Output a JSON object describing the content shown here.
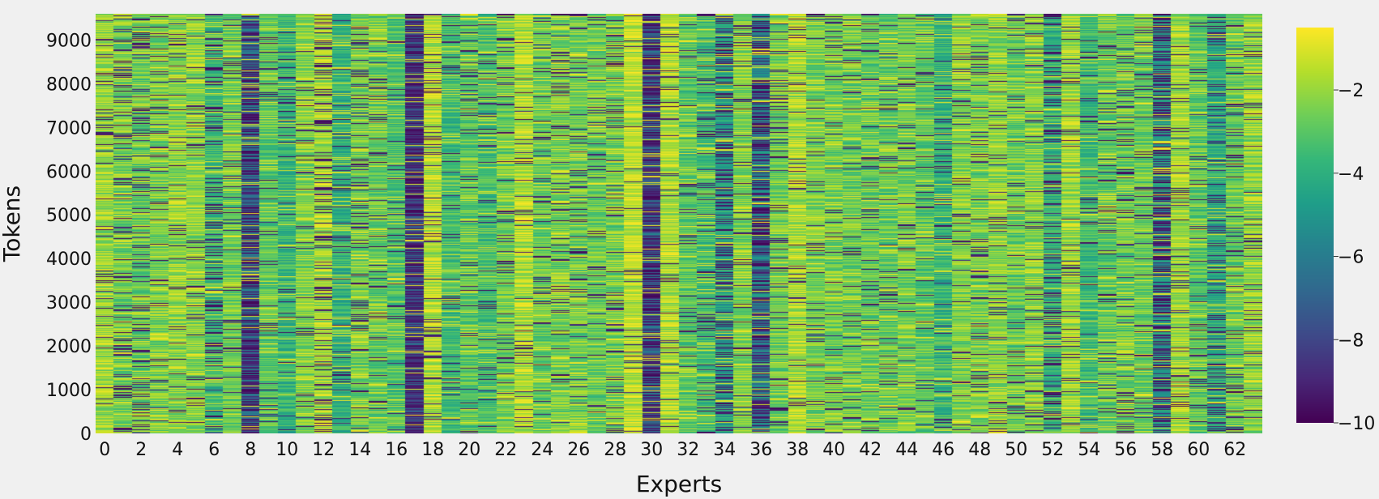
{
  "chart_data": {
    "type": "heatmap",
    "title": "",
    "xlabel": "Experts",
    "ylabel": "Tokens",
    "x_ticks": [
      "0",
      "2",
      "4",
      "6",
      "8",
      "10",
      "12",
      "14",
      "16",
      "18",
      "20",
      "22",
      "24",
      "26",
      "28",
      "30",
      "32",
      "34",
      "36",
      "38",
      "40",
      "42",
      "44",
      "46",
      "48",
      "50",
      "52",
      "54",
      "56",
      "58",
      "60",
      "62"
    ],
    "y_ticks": [
      "0",
      "1000",
      "2000",
      "3000",
      "4000",
      "5000",
      "6000",
      "7000",
      "8000",
      "9000"
    ],
    "x_range": [
      0,
      63
    ],
    "y_range": [
      0,
      9600
    ],
    "num_experts": 64,
    "colorscale": "viridis",
    "colorbar_range": [
      -10,
      -0.5
    ],
    "colorbar_ticks": [
      "−2",
      "−4",
      "−6",
      "−8",
      "−10"
    ],
    "colorbar_tick_values": [
      -2,
      -4,
      -6,
      -8,
      -10
    ],
    "expert_mean_values": [
      -2.0,
      -2.6,
      -2.8,
      -2.5,
      -2.2,
      -2.3,
      -3.5,
      -2.7,
      -6.5,
      -3.0,
      -3.8,
      -2.4,
      -1.8,
      -4.0,
      -2.6,
      -2.8,
      -3.2,
      -7.5,
      -1.6,
      -3.5,
      -3.0,
      -3.4,
      -2.6,
      -1.7,
      -2.8,
      -2.5,
      -2.6,
      -2.8,
      -2.6,
      -1.5,
      -6.8,
      -1.7,
      -3.0,
      -3.5,
      -4.5,
      -2.4,
      -5.5,
      -2.7,
      -1.8,
      -2.5,
      -2.6,
      -2.7,
      -2.8,
      -2.9,
      -2.6,
      -3.0,
      -3.8,
      -2.4,
      -2.6,
      -2.2,
      -2.8,
      -2.3,
      -3.8,
      -2.0,
      -3.6,
      -2.9,
      -2.7,
      -2.8,
      -4.8,
      -1.9,
      -3.0,
      -4.2,
      -2.8,
      -2.2
    ],
    "dark_bar_probability_by_expert": [
      0.08,
      0.15,
      0.18,
      0.08,
      0.05,
      0.06,
      0.18,
      0.07,
      0.45,
      0.05,
      0.05,
      0.06,
      0.22,
      0.06,
      0.15,
      0.08,
      0.05,
      0.55,
      0.08,
      0.05,
      0.08,
      0.07,
      0.08,
      0.06,
      0.1,
      0.1,
      0.1,
      0.08,
      0.1,
      0.04,
      0.5,
      0.07,
      0.05,
      0.08,
      0.3,
      0.07,
      0.4,
      0.12,
      0.05,
      0.06,
      0.06,
      0.06,
      0.07,
      0.05,
      0.08,
      0.05,
      0.06,
      0.08,
      0.1,
      0.07,
      0.06,
      0.08,
      0.22,
      0.06,
      0.06,
      0.1,
      0.1,
      0.08,
      0.4,
      0.08,
      0.08,
      0.15,
      0.1,
      0.06
    ]
  }
}
